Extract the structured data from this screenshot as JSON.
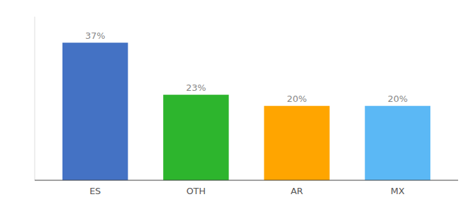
{
  "chart_data": {
    "type": "bar",
    "categories": [
      "ES",
      "OTH",
      "AR",
      "MX"
    ],
    "values": [
      37,
      23,
      20,
      20
    ],
    "value_labels": [
      "37%",
      "23%",
      "20%",
      "20%"
    ],
    "colors": [
      "#4472c4",
      "#2db52d",
      "#ffa500",
      "#5bb8f5"
    ],
    "ylim": [
      0,
      44
    ],
    "grid": false,
    "data_labels": true,
    "tick_labels": "x"
  }
}
